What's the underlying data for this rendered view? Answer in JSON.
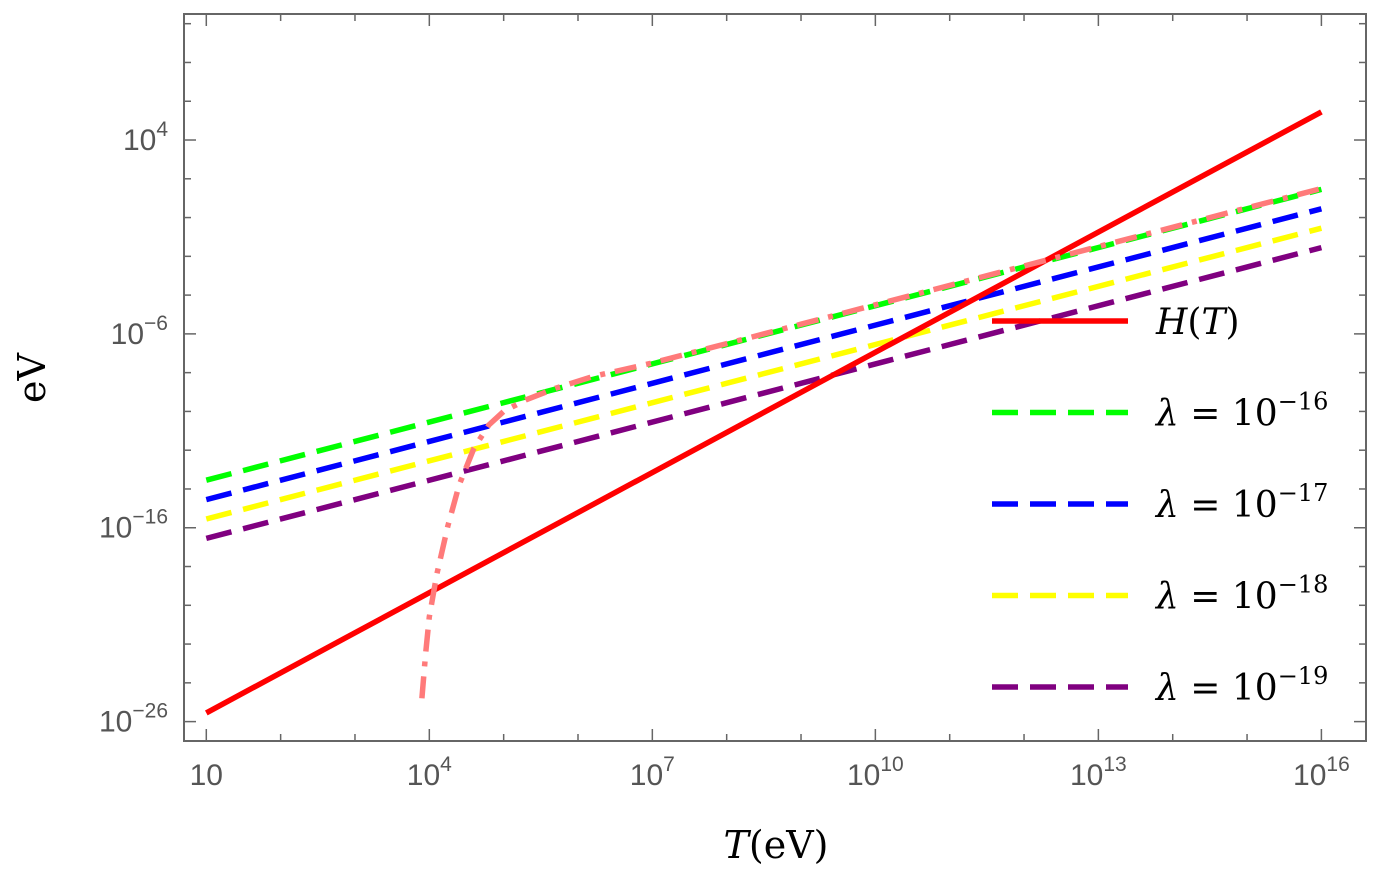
{
  "chart_data": {
    "type": "line",
    "x_scale": "log10",
    "y_scale": "log10",
    "xlabel": {
      "italic": "T",
      "rest": "(eV)"
    },
    "ylabel": "eV",
    "xlim_log10": [
      0.7,
      16.6
    ],
    "ylim_log10": [
      -27.0,
      10.5
    ],
    "x_ticks": [
      {
        "base": "10",
        "exp": "",
        "log10": 1
      },
      {
        "base": "10",
        "exp": "4",
        "log10": 4
      },
      {
        "base": "10",
        "exp": "7",
        "log10": 7
      },
      {
        "base": "10",
        "exp": "10",
        "log10": 10
      },
      {
        "base": "10",
        "exp": "13",
        "log10": 13
      },
      {
        "base": "10",
        "exp": "16",
        "log10": 16
      }
    ],
    "y_ticks": [
      {
        "base": "10",
        "exp": "4",
        "log10": 4
      },
      {
        "base": "10",
        "exp": "−6",
        "log10": -6
      },
      {
        "base": "10",
        "exp": "−16",
        "log10": -16
      },
      {
        "base": "10",
        "exp": "−26",
        "log10": -26
      }
    ],
    "series": [
      {
        "name": "H(T)",
        "label_main": "H",
        "label_rest": "(T)",
        "label_exp": "",
        "color": "#ff0000",
        "dash": "solid",
        "x_log10": [
          1,
          16
        ],
        "y_log10": [
          -25.55,
          5.45
        ]
      },
      {
        "name": "λ = 10^-16",
        "label_main": "λ",
        "label_rest": " = 10",
        "label_exp": "−16",
        "color": "#00ff00",
        "dash": "dashed",
        "x_log10": [
          1,
          16
        ],
        "y_log10": [
          -13.55,
          1.45
        ]
      },
      {
        "name": "λ = 10^-17",
        "label_main": "λ",
        "label_rest": " = 10",
        "label_exp": "−17",
        "color": "#0000ff",
        "dash": "dashed",
        "x_log10": [
          1,
          16
        ],
        "y_log10": [
          -14.55,
          0.45
        ]
      },
      {
        "name": "λ = 10^-18",
        "label_main": "λ",
        "label_rest": " = 10",
        "label_exp": "−18",
        "color": "#ffff00",
        "dash": "dashed",
        "x_log10": [
          1,
          16
        ],
        "y_log10": [
          -15.55,
          -0.55
        ]
      },
      {
        "name": "λ = 10^-19",
        "label_main": "λ",
        "label_rest": " = 10",
        "label_exp": "−19",
        "color": "#800080",
        "dash": "dashed",
        "x_log10": [
          1,
          16
        ],
        "y_log10": [
          -16.55,
          -1.55
        ]
      }
    ],
    "extra_curves": [
      {
        "name": "unlabeled dash-dot curve",
        "color": "#ff7a7a",
        "dash": "dashdot",
        "x_log10": [
          3.9,
          3.95,
          4.0,
          4.1,
          4.25,
          4.4,
          4.6,
          4.8,
          5.0,
          5.3,
          5.7,
          6.2,
          7.0,
          8.0,
          9.0,
          10.0,
          11.0,
          12.0,
          13.0,
          14.0,
          15.0,
          16.0
        ],
        "y_log10": [
          -24.8,
          -22.5,
          -20.6,
          -18.4,
          -15.9,
          -13.8,
          -11.9,
          -10.7,
          -10.0,
          -9.4,
          -8.8,
          -8.2,
          -7.5,
          -6.5,
          -5.5,
          -4.5,
          -3.5,
          -2.5,
          -1.5,
          -0.5,
          0.5,
          1.5
        ]
      }
    ]
  }
}
